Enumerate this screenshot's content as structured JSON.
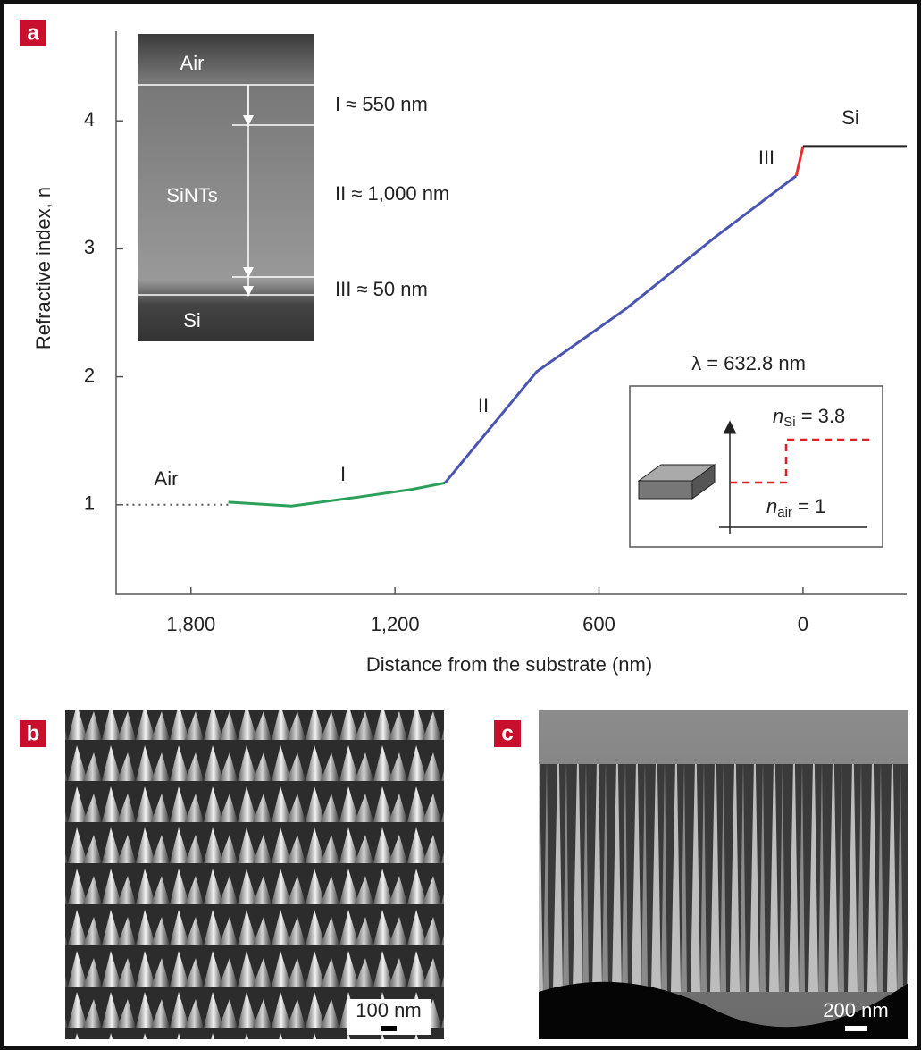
{
  "chart_data": {
    "type": "line",
    "panel_label": "a",
    "x_label": "Distance from the substrate (nm)",
    "y_label": "Refractive index, n",
    "xlim": [
      2020,
      -305
    ],
    "xticks": [
      {
        "value": 1800,
        "label": "1,800"
      },
      {
        "value": 1200,
        "label": "1,200"
      },
      600,
      0
    ],
    "ylim": [
      0.3,
      4.7
    ],
    "yticks": [
      1,
      2,
      3,
      4
    ],
    "series": [
      {
        "color": "#555555",
        "line_style": "dotted",
        "x": [
          1990,
          1690
        ],
        "values": [
          1,
          1
        ]
      },
      {
        "color": "#2ca05a",
        "line_style": "solid",
        "x": [
          1690,
          1504,
          1307,
          1150,
          1053
        ],
        "values": [
          1.02,
          0.99,
          1.06,
          1.12,
          1.17
        ]
      },
      {
        "color": "#4a55b0",
        "line_style": "solid",
        "x": [
          1053,
          783,
          521,
          259,
          20
        ],
        "values": [
          1.17,
          2.04,
          2.53,
          3.09,
          3.57
        ]
      },
      {
        "color": "#e03030",
        "line_style": "solid",
        "x": [
          20,
          0
        ],
        "values": [
          3.57,
          3.8
        ]
      },
      {
        "color": "#222222",
        "line_style": "solid",
        "x": [
          0,
          -305
        ],
        "values": [
          3.8,
          3.8
        ]
      }
    ],
    "annotations": [
      "Air",
      "I",
      "II",
      "III",
      "Si"
    ],
    "inset_sem": {
      "layers": [
        "Air",
        "SiNTs",
        "Si"
      ],
      "thicknesses": [
        "I ≈ 550 nm",
        "II ≈ 1,000 nm",
        "III ≈ 50 nm"
      ]
    },
    "inset_schematic": {
      "wavelength": "λ = 632.8 nm",
      "n_si": [
        "n",
        "Si",
        " = 3.8"
      ],
      "n_air": [
        "n",
        "air",
        " = 1"
      ]
    }
  },
  "images": [
    {
      "label": "b",
      "scale_bar": "100 nm"
    },
    {
      "label": "c",
      "scale_bar": "200 nm"
    }
  ]
}
